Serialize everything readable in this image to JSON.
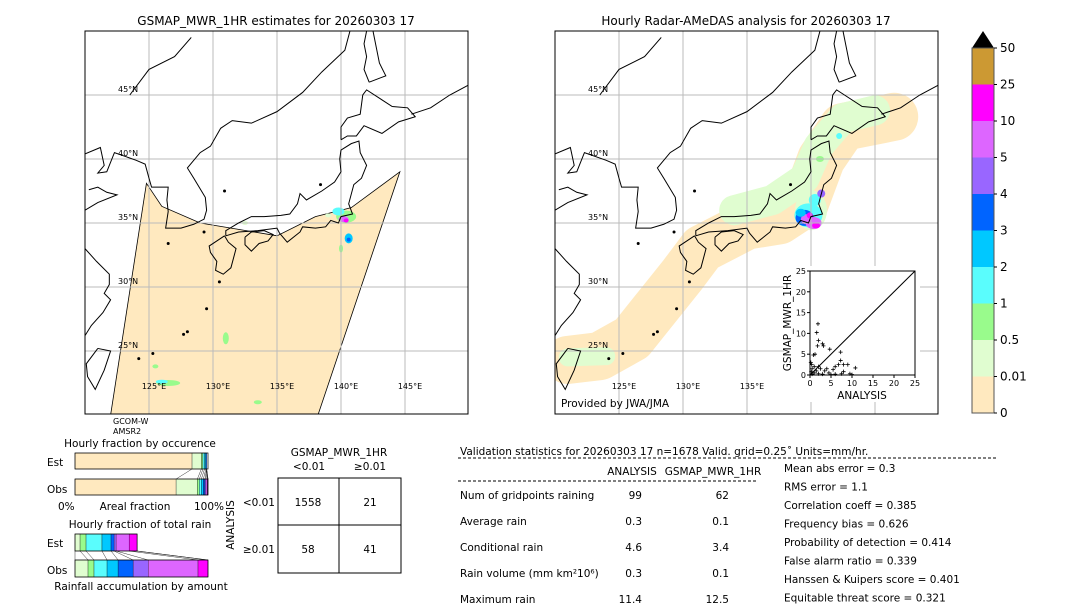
{
  "left_map": {
    "title": "GSMAP_MWR_1HR estimates for 20260303 17",
    "satellite_line1": "GCOM-W",
    "satellite_line2": "AMSR2"
  },
  "right_map": {
    "title": "Hourly Radar-AMeDAS analysis for 20260303 17",
    "credit": "Provided by JWA/JMA"
  },
  "map_extent": {
    "lon": [
      120,
      150
    ],
    "lat": [
      20,
      50
    ]
  },
  "lat_labels": [
    "45°N",
    "40°N",
    "35°N",
    "30°N",
    "25°N"
  ],
  "lon_labels": [
    "125°E",
    "130°E",
    "135°E",
    "140°E",
    "145°E"
  ],
  "colorbar": {
    "labels": [
      "0",
      "0.01",
      "0.5",
      "1",
      "2",
      "3",
      "4",
      "5",
      "10",
      "25",
      "50"
    ],
    "colors": [
      "#ffe9bf",
      "#e0fdd0",
      "#99fb8c",
      "#5afdfd",
      "#00c8ff",
      "#0064ff",
      "#9966ff",
      "#dd66ff",
      "#ff00ff",
      "#cc9933"
    ],
    "extend": "max"
  },
  "occurrence": {
    "title": "Hourly fraction by occurence",
    "est_label": "Est",
    "obs_label": "Obs",
    "axis_left": "0%",
    "axis_mid": "Areal fraction",
    "axis_right": "100%",
    "est": [
      0.88,
      0.07,
      0.012,
      0.012,
      0.01,
      0.006,
      0,
      0,
      0,
      0
    ],
    "obs": [
      0.76,
      0.16,
      0.015,
      0.015,
      0.015,
      0.012,
      0.008,
      0.01,
      0.005,
      0
    ]
  },
  "total_rain": {
    "title": "Hourly fraction of total rain",
    "est_label": "Est",
    "obs_label": "Obs",
    "footer": "Rainfall accumulation by amount",
    "est": [
      0,
      0.038,
      0.045,
      0.12,
      0.068,
      0.023,
      0.015,
      0.098,
      0.06,
      0
    ],
    "obs": [
      0,
      0.098,
      0.045,
      0.098,
      0.083,
      0.113,
      0.113,
      0.375,
      0.075,
      0
    ]
  },
  "contingency": {
    "col_title": "GSMAP_MWR_1HR",
    "col_labels": [
      "<0.01",
      "≥0.01"
    ],
    "row_title": "ANALYSIS",
    "row_labels": [
      "<0.01",
      "≥0.01"
    ],
    "cells": [
      [
        "1558",
        "21"
      ],
      [
        "58",
        "41"
      ]
    ]
  },
  "stats": {
    "header": "Validation statistics for 20260303 17  n=1678 Valid. grid=0.25˚ Units=mm/hr.",
    "col_analysis": "ANALYSIS",
    "col_gsmap": "GSMAP_MWR_1HR",
    "rows": [
      {
        "label": "Num of gridpoints raining",
        "analysis": "99",
        "gsmap": "62"
      },
      {
        "label": "Average rain",
        "analysis": "0.3",
        "gsmap": "0.1"
      },
      {
        "label": "Conditional rain",
        "analysis": "4.6",
        "gsmap": "3.4"
      },
      {
        "label": "Rain volume (mm km²10⁶)",
        "analysis": "0.3",
        "gsmap": "0.1"
      },
      {
        "label": "Maximum rain",
        "analysis": "11.4",
        "gsmap": "12.5"
      }
    ],
    "scores": [
      "Mean abs error =    0.3",
      "RMS error =    1.1",
      "Correlation coeff =  0.385",
      "Frequency bias =  0.626",
      "Probability of detection =  0.414",
      "False alarm ratio =  0.339",
      "Hanssen & Kuipers score =  0.401",
      "Equitable threat score =  0.321"
    ]
  },
  "chart_data": {
    "type": "scatter",
    "xlabel": "ANALYSIS",
    "ylabel": "GSMAP_MWR_1HR",
    "xlim": [
      0,
      25
    ],
    "ylim": [
      0,
      25
    ],
    "xticks": [
      "0",
      "5",
      "10",
      "15",
      "20",
      "25"
    ],
    "yticks": [
      "0",
      "5",
      "10",
      "15",
      "20",
      "25"
    ],
    "diagonal": true,
    "points": [
      [
        1.9,
        12.3
      ],
      [
        1.6,
        10.2
      ],
      [
        2,
        8.3
      ],
      [
        3,
        7.5
      ],
      [
        1.8,
        7
      ],
      [
        3.2,
        7
      ],
      [
        4.7,
        6.2
      ],
      [
        1.2,
        5
      ],
      [
        0.8,
        4.8
      ],
      [
        7.3,
        5.5
      ],
      [
        7.3,
        3.5
      ],
      [
        8,
        2.5
      ],
      [
        6.8,
        2.5
      ],
      [
        9,
        2.5
      ],
      [
        6,
        2
      ],
      [
        10.8,
        1.7
      ],
      [
        5.5,
        1.3
      ],
      [
        4,
        1.5
      ],
      [
        3.5,
        1
      ],
      [
        2.5,
        1.5
      ],
      [
        2,
        2
      ],
      [
        1,
        2
      ],
      [
        0.5,
        1.5
      ],
      [
        0.3,
        0.8
      ],
      [
        1,
        0.5
      ],
      [
        2,
        0.3
      ],
      [
        3,
        0.2
      ],
      [
        5,
        0.1
      ],
      [
        6,
        0.2
      ],
      [
        7.5,
        0.3
      ],
      [
        9.5,
        0.3
      ],
      [
        10,
        0.1
      ],
      [
        0.5,
        0.2
      ],
      [
        1.5,
        1
      ],
      [
        4.5,
        0.5
      ],
      [
        8,
        0.8
      ],
      [
        0.2,
        3
      ],
      [
        0.4,
        2.5
      ]
    ]
  }
}
